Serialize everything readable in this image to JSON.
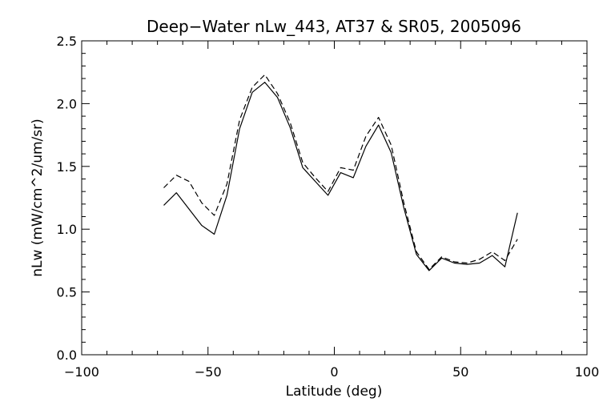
{
  "chart_data": {
    "type": "line",
    "title": "Deep−Water nLw_443, AT37 & SR05, 2005096",
    "xlabel": "Latitude (deg)",
    "ylabel": "nLw (mW/cm^2/um/sr)",
    "xlim": [
      -100,
      100
    ],
    "ylim": [
      0,
      2.5
    ],
    "xticks": [
      -100,
      -50,
      0,
      50,
      100
    ],
    "xtick_labels": [
      "−100",
      "−50",
      "0",
      "50",
      "100"
    ],
    "yticks": [
      0,
      0.5,
      1,
      1.5,
      2,
      2.5
    ],
    "ytick_labels": [
      "0.0",
      "0.5",
      "1.0",
      "1.5",
      "2.0",
      "2.5"
    ],
    "grid": false,
    "series": [
      {
        "style": "solid",
        "color": "#000000",
        "x": [
          -67.5,
          -62.5,
          -57.5,
          -52.5,
          -47.5,
          -42.5,
          -37.5,
          -32.5,
          -27.5,
          -22.5,
          -17.5,
          -12.5,
          -7.5,
          -2.5,
          2.5,
          7.5,
          12.5,
          17.5,
          22.5,
          27.5,
          32.5,
          37.5,
          42.5,
          47.5,
          52.5,
          57.5,
          62.5,
          67.5,
          72.5
        ],
        "y": [
          1.19,
          1.29,
          1.16,
          1.03,
          0.96,
          1.27,
          1.8,
          2.09,
          2.17,
          2.05,
          1.81,
          1.49,
          1.38,
          1.27,
          1.45,
          1.41,
          1.66,
          1.83,
          1.61,
          1.17,
          0.8,
          0.67,
          0.77,
          0.73,
          0.72,
          0.73,
          0.79,
          0.7,
          1.13
        ]
      },
      {
        "style": "dashed",
        "color": "#000000",
        "x": [
          -67.5,
          -62.5,
          -57.5,
          -52.5,
          -47.5,
          -42.5,
          -37.5,
          -32.5,
          -27.5,
          -22.5,
          -17.5,
          -12.5,
          -7.5,
          -2.5,
          2.5,
          7.5,
          12.5,
          17.5,
          22.5,
          27.5,
          32.5,
          37.5,
          42.5,
          47.5,
          52.5,
          57.5,
          62.5,
          67.5,
          72.5
        ],
        "y": [
          1.33,
          1.43,
          1.38,
          1.21,
          1.11,
          1.36,
          1.87,
          2.13,
          2.23,
          2.08,
          1.85,
          1.53,
          1.41,
          1.3,
          1.49,
          1.47,
          1.74,
          1.89,
          1.67,
          1.21,
          0.82,
          0.68,
          0.78,
          0.74,
          0.73,
          0.76,
          0.82,
          0.75,
          0.92
        ]
      }
    ]
  }
}
